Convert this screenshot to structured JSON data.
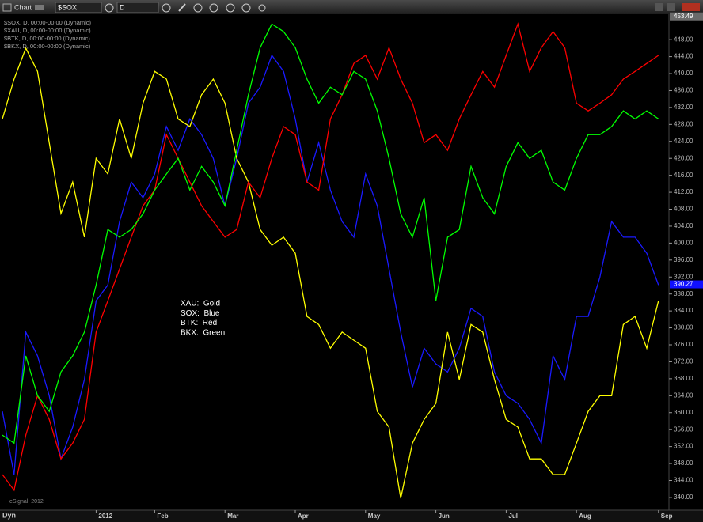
{
  "ui": {
    "window_title": "Chart",
    "symbol": "$SOX",
    "interval": "D",
    "watermark": "eSignal, 2012",
    "footer": "Dyn"
  },
  "chart_data": {
    "type": "line",
    "categories": [
      null,
      null,
      null,
      null,
      null,
      null,
      null,
      null,
      "2012",
      null,
      null,
      null,
      null,
      "Feb",
      null,
      null,
      null,
      null,
      null,
      "Mar",
      null,
      null,
      null,
      null,
      null,
      "Apr",
      null,
      null,
      null,
      null,
      null,
      "May",
      null,
      null,
      null,
      null,
      null,
      "Jun",
      null,
      null,
      null,
      null,
      null,
      "Jul",
      null,
      null,
      null,
      null,
      null,
      "Aug",
      null,
      null,
      null,
      null,
      null,
      null,
      "Sep"
    ],
    "series": [
      {
        "name": "$SOX, D, 00:00-00:00 (Dynamic)",
        "color": "#1a1aff",
        "values": [
          360.3,
          345.4,
          379,
          373.4,
          364,
          349.1,
          356.6,
          367.8,
          386.4,
          390.1,
          405.1,
          414.4,
          410.7,
          416.3,
          427.5,
          421.9,
          429.3,
          425.6,
          420,
          408.8,
          420,
          433,
          436.8,
          444.3,
          440.5,
          429.3,
          414.4,
          423.7,
          412.5,
          405.1,
          401.4,
          416.3,
          408.8,
          393.9,
          379,
          366,
          375.2,
          371.5,
          369.6,
          375.2,
          384.6,
          382.7,
          369.6,
          364,
          362.2,
          358.4,
          352.8,
          373.4,
          367.8,
          382.7,
          382.7,
          392,
          405.1,
          401.4,
          401.4,
          397.6,
          390.1
        ]
      },
      {
        "name": "$XAU, D, 00:00-00:00 (Dynamic)",
        "color": "#ffff00",
        "values": [
          429.3,
          438.7,
          446,
          440.5,
          423.7,
          407,
          414.4,
          401.4,
          420,
          416.3,
          429.3,
          420,
          433,
          440.5,
          438.7,
          429.3,
          427.5,
          435,
          438.7,
          433,
          420,
          414.4,
          403.2,
          399.5,
          401.4,
          397.6,
          382.7,
          380.8,
          375.2,
          379,
          377.1,
          375.2,
          360.3,
          356.6,
          339.8,
          352.8,
          358.4,
          362.2,
          379,
          367.8,
          380.8,
          379,
          367.8,
          358.4,
          356.6,
          349.1,
          349.1,
          345.4,
          345.4,
          352.8,
          360.3,
          364,
          364,
          380.8,
          382.7,
          375.2,
          386.4
        ]
      },
      {
        "name": "$BTK, D, 00:00-00:00 (Dynamic)",
        "color": "#ff0000",
        "values": [
          345.4,
          341.7,
          354.7,
          364,
          358.4,
          349.1,
          352.8,
          358.4,
          379,
          386.4,
          393.9,
          401.4,
          408.8,
          412.5,
          425.6,
          420,
          414.4,
          408.8,
          405.1,
          401.4,
          403.2,
          414.4,
          410.7,
          420,
          427.5,
          425.6,
          414.4,
          412.5,
          429.3,
          435,
          442.4,
          444.3,
          438.7,
          446.1,
          438.7,
          433,
          423.7,
          425.6,
          421.9,
          429.3,
          435,
          440.5,
          436.8,
          444.3,
          451.7,
          440.5,
          446.1,
          449.9,
          446.1,
          433,
          431.2,
          433,
          435,
          438.7,
          440.5,
          442.4,
          444.3
        ]
      },
      {
        "name": "$BKX, D, 00:00-00:00 (Dynamic)",
        "color": "#00ff00",
        "values": [
          354.7,
          352.8,
          373.4,
          364,
          360.3,
          369.6,
          373.4,
          379,
          390.1,
          403.2,
          401.4,
          403.2,
          406.9,
          412.5,
          416.3,
          420,
          412.5,
          418.1,
          414.4,
          408.8,
          421.9,
          435,
          446.1,
          451.7,
          449.9,
          446.1,
          438.7,
          433,
          436.8,
          435,
          440.5,
          438.7,
          431.2,
          420,
          406.9,
          401.4,
          410.7,
          386.4,
          401.4,
          403.2,
          418.1,
          410.7,
          406.9,
          418.1,
          423.7,
          420,
          421.9,
          414.4,
          412.5,
          420,
          425.6,
          425.6,
          427.5,
          431.2,
          429.3,
          431.2,
          429.3
        ]
      }
    ],
    "annotations": [
      "XAU:  Gold",
      "SOX:  Blue",
      "BTK:  Red",
      "BKX:  Green"
    ],
    "last_values": [
      {
        "value": 453.49,
        "color": "#6a6a6a"
      },
      {
        "value": 390.27,
        "color": "#1010ff"
      }
    ],
    "ylim": [
      337,
      454
    ],
    "yticks": [
      {
        "value": 340,
        "label": "340.00"
      },
      {
        "value": 344,
        "label": "344.00"
      },
      {
        "value": 348,
        "label": "348.00"
      },
      {
        "value": 352,
        "label": "352.00"
      },
      {
        "value": 356,
        "label": "356.00"
      },
      {
        "value": 360,
        "label": "360.00"
      },
      {
        "value": 364,
        "label": "364.00"
      },
      {
        "value": 368,
        "label": "368.00"
      },
      {
        "value": 372,
        "label": "372.00"
      },
      {
        "value": 376,
        "label": "376.00"
      },
      {
        "value": 380,
        "label": "380.00"
      },
      {
        "value": 384,
        "label": "384.00"
      },
      {
        "value": 388,
        "label": "388.00"
      },
      {
        "value": 392,
        "label": "392.00"
      },
      {
        "value": 396,
        "label": "396.00"
      },
      {
        "value": 400,
        "label": "400.00"
      },
      {
        "value": 404,
        "label": "404.00"
      },
      {
        "value": 408,
        "label": "408.00"
      },
      {
        "value": 412,
        "label": "412.00"
      },
      {
        "value": 416,
        "label": "416.00"
      },
      {
        "value": 420,
        "label": "420.00"
      },
      {
        "value": 424,
        "label": "424.00"
      },
      {
        "value": 428,
        "label": "428.00"
      },
      {
        "value": 432,
        "label": "432.00"
      },
      {
        "value": 436,
        "label": "436.00"
      },
      {
        "value": 440,
        "label": "440.00"
      },
      {
        "value": 444,
        "label": "444.00"
      },
      {
        "value": 448,
        "label": "448.00"
      }
    ],
    "grid": false
  }
}
